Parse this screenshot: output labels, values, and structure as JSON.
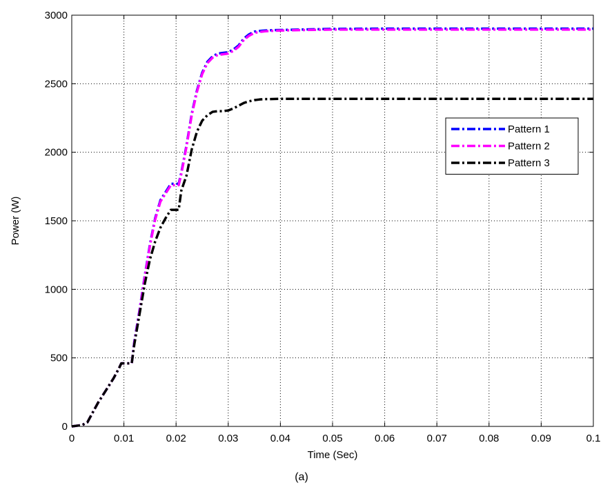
{
  "chart_data": {
    "type": "line",
    "title": "",
    "xlabel": "Time (Sec)",
    "ylabel": "Power (W)",
    "xlim": [
      0,
      0.1
    ],
    "ylim": [
      0,
      3000
    ],
    "xticks": [
      0,
      0.01,
      0.02,
      0.03,
      0.04,
      0.05,
      0.06,
      0.07,
      0.08,
      0.09,
      0.1
    ],
    "xtick_labels": [
      "0",
      "0.01",
      "0.02",
      "0.03",
      "0.04",
      "0.05",
      "0.06",
      "0.07",
      "0.08",
      "0.09",
      "0.1"
    ],
    "yticks": [
      0,
      500,
      1000,
      1500,
      2000,
      2500,
      3000
    ],
    "ytick_labels": [
      "0",
      "500",
      "1000",
      "1500",
      "2000",
      "2500",
      "3000"
    ],
    "grid": true,
    "legend_position": "top-right",
    "series": [
      {
        "name": "Pattern 1",
        "color": "#0000ff",
        "x": [
          0,
          0.002,
          0.003,
          0.004,
          0.005,
          0.006,
          0.007,
          0.008,
          0.009,
          0.0095,
          0.0115,
          0.012,
          0.013,
          0.014,
          0.015,
          0.016,
          0.017,
          0.018,
          0.019,
          0.0205,
          0.021,
          0.022,
          0.023,
          0.024,
          0.025,
          0.026,
          0.027,
          0.028,
          0.029,
          0.03,
          0.031,
          0.032,
          0.033,
          0.034,
          0.035,
          0.036,
          0.037,
          0.038,
          0.04,
          0.045,
          0.05,
          0.06,
          0.07,
          0.08,
          0.09,
          0.1
        ],
        "y": [
          0,
          10,
          30,
          100,
          170,
          230,
          290,
          350,
          420,
          460,
          460,
          620,
          850,
          1100,
          1330,
          1520,
          1650,
          1710,
          1770,
          1770,
          1850,
          2050,
          2280,
          2450,
          2580,
          2660,
          2700,
          2720,
          2725,
          2730,
          2750,
          2780,
          2830,
          2860,
          2880,
          2885,
          2888,
          2890,
          2892,
          2896,
          2900,
          2902,
          2902,
          2902,
          2902,
          2902
        ]
      },
      {
        "name": "Pattern 2",
        "color": "#ff00ff",
        "x": [
          0,
          0.002,
          0.003,
          0.004,
          0.005,
          0.006,
          0.007,
          0.008,
          0.009,
          0.0095,
          0.0115,
          0.012,
          0.013,
          0.014,
          0.015,
          0.016,
          0.017,
          0.018,
          0.019,
          0.0205,
          0.021,
          0.022,
          0.023,
          0.024,
          0.025,
          0.026,
          0.027,
          0.028,
          0.029,
          0.03,
          0.031,
          0.032,
          0.033,
          0.034,
          0.035,
          0.036,
          0.037,
          0.038,
          0.04,
          0.045,
          0.05,
          0.06,
          0.07,
          0.08,
          0.09,
          0.1
        ],
        "y": [
          0,
          10,
          30,
          100,
          170,
          230,
          290,
          350,
          420,
          460,
          460,
          610,
          840,
          1090,
          1320,
          1510,
          1640,
          1700,
          1760,
          1760,
          1840,
          2040,
          2270,
          2440,
          2570,
          2650,
          2690,
          2710,
          2715,
          2720,
          2740,
          2770,
          2820,
          2850,
          2870,
          2878,
          2882,
          2885,
          2888,
          2892,
          2895,
          2895,
          2895,
          2895,
          2895,
          2895
        ]
      },
      {
        "name": "Pattern 3",
        "color": "#000000",
        "x": [
          0,
          0.002,
          0.003,
          0.004,
          0.005,
          0.006,
          0.007,
          0.008,
          0.009,
          0.0095,
          0.0115,
          0.012,
          0.013,
          0.014,
          0.015,
          0.016,
          0.017,
          0.018,
          0.019,
          0.0205,
          0.021,
          0.022,
          0.023,
          0.024,
          0.025,
          0.026,
          0.027,
          0.028,
          0.029,
          0.03,
          0.031,
          0.032,
          0.033,
          0.034,
          0.035,
          0.036,
          0.037,
          0.038,
          0.04,
          0.045,
          0.05,
          0.06,
          0.07,
          0.08,
          0.09,
          0.1
        ],
        "y": [
          0,
          10,
          30,
          100,
          170,
          230,
          290,
          350,
          420,
          460,
          460,
          600,
          820,
          1040,
          1220,
          1350,
          1450,
          1520,
          1580,
          1580,
          1720,
          1830,
          2020,
          2150,
          2230,
          2270,
          2295,
          2300,
          2300,
          2305,
          2320,
          2340,
          2360,
          2372,
          2380,
          2385,
          2388,
          2388,
          2390,
          2390,
          2390,
          2390,
          2390,
          2390,
          2390,
          2390
        ]
      }
    ]
  },
  "caption": "(a)"
}
